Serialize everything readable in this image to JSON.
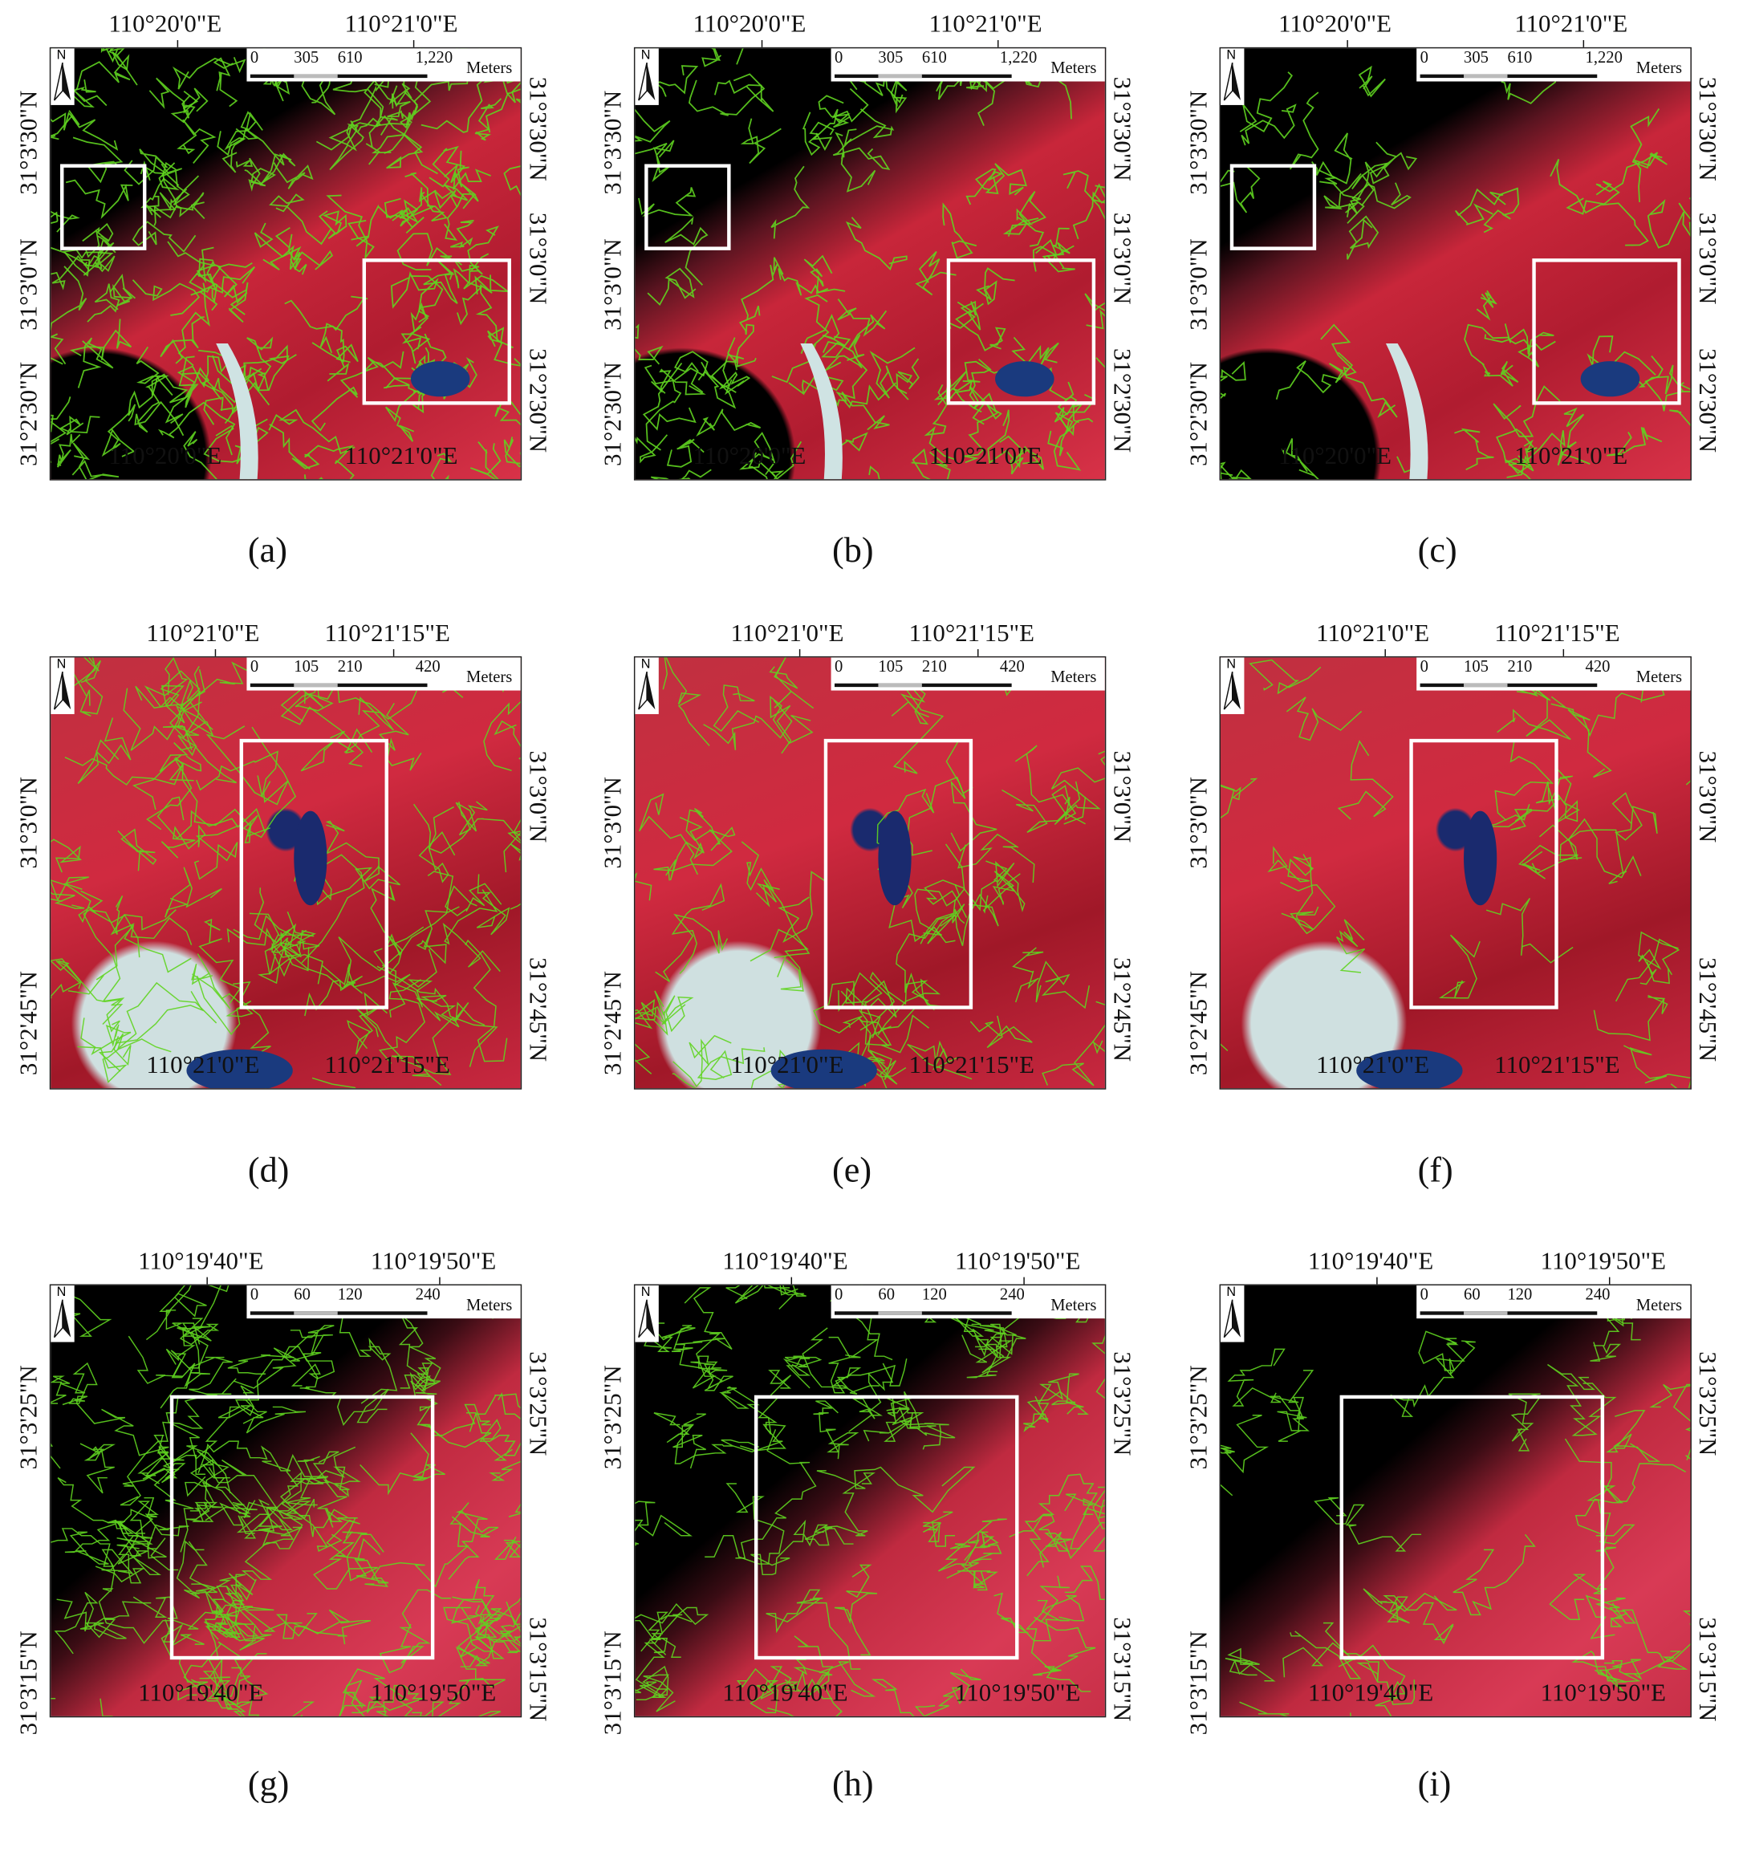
{
  "figure": {
    "north_label": "N",
    "scale_unit": "Meters",
    "colors": {
      "boundary": "#5fd420",
      "highlight_box": "#ffffff",
      "vegetation": "#d2263f",
      "water": "#1a2a6e",
      "background": "#000000"
    },
    "rows": [
      {
        "top_lon_labels": [
          "110°20'0\"E",
          "110°21'0\"E"
        ],
        "bottom_lon_labels": [
          "110°20'0\"E",
          "110°21'0\"E"
        ],
        "left_lat_labels": [
          "31°3'30\"N",
          "31°3'0\"N",
          "31°2'30\"N"
        ],
        "right_lat_labels": [
          "31°3'30\"N",
          "31°3'0\"N",
          "31°2'30\"N"
        ],
        "scale_labels": [
          "0",
          "305",
          "610",
          "1,220"
        ],
        "captions": [
          "(a)",
          "(b)",
          "(c)"
        ]
      },
      {
        "top_lon_labels": [
          "110°21'0\"E",
          "110°21'15\"E"
        ],
        "bottom_lon_labels": [
          "110°21'0\"E",
          "110°21'15\"E"
        ],
        "left_lat_labels": [
          "31°3'0\"N",
          "31°2'45\"N"
        ],
        "right_lat_labels": [
          "31°3'0\"N",
          "31°2'45\"N"
        ],
        "scale_labels": [
          "0",
          "105",
          "210",
          "420"
        ],
        "captions": [
          "(d)",
          "(e)",
          "(f)"
        ]
      },
      {
        "top_lon_labels": [
          "110°19'40\"E",
          "110°19'50\"E"
        ],
        "bottom_lon_labels": [
          "110°19'40\"E",
          "110°19'50\"E"
        ],
        "left_lat_labels": [
          "31°3'25\"N",
          "31°3'15\"N"
        ],
        "right_lat_labels": [
          "31°3'25\"N",
          "31°3'15\"N"
        ],
        "scale_labels": [
          "0",
          "60",
          "120",
          "240"
        ],
        "captions": [
          "(g)",
          "(h)",
          "(i)"
        ]
      }
    ]
  }
}
